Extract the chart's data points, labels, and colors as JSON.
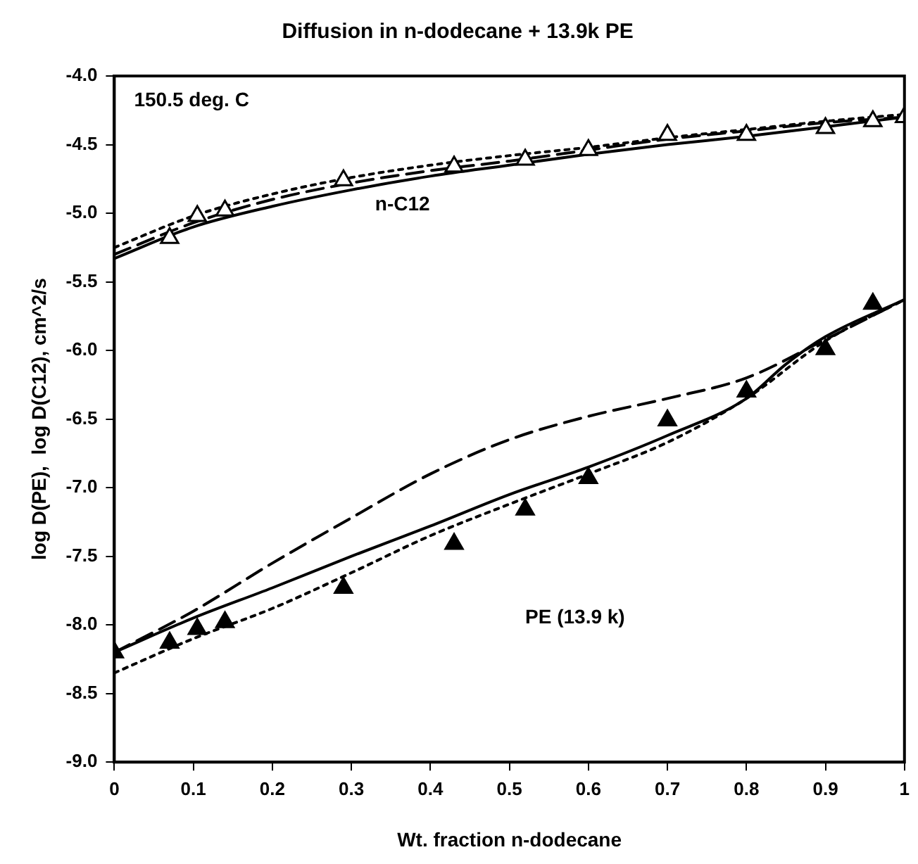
{
  "chart_data": {
    "type": "line",
    "title": "Diffusion in n-dodecane + 13.9k PE",
    "xlabel": "Wt. fraction n-dodecane",
    "ylabel": "log D(PE),  log D(C12), cm^2/s",
    "xlim": [
      0,
      1
    ],
    "xticks": [
      0,
      0.1,
      0.2,
      0.3,
      0.4,
      0.5,
      0.6,
      0.7,
      0.8,
      0.9,
      1
    ],
    "ylim": [
      -9,
      -4
    ],
    "yticks": [
      {
        "value": -9,
        "label": "-9.0"
      },
      {
        "value": -8.5,
        "label": "-8.5"
      },
      {
        "value": -8,
        "label": "-8.0"
      },
      {
        "value": -7.5,
        "label": "-7.5"
      },
      {
        "value": -7,
        "label": "-7.0"
      },
      {
        "value": -6.5,
        "label": "-6.5"
      },
      {
        "value": -6,
        "label": "-6.0"
      },
      {
        "value": -5.5,
        "label": "-5.5"
      },
      {
        "value": -5,
        "label": "-5.0"
      },
      {
        "value": -4.5,
        "label": "-4.5"
      },
      {
        "value": -4,
        "label": "-4.0"
      }
    ],
    "grid": false,
    "legend": false,
    "annotations": [
      "150.5 deg. C",
      "n-C12",
      "PE (13.9 k)"
    ],
    "series": [
      {
        "type": "line",
        "line_style": "solid",
        "marker": "none",
        "color": "#000000",
        "x": [
          0,
          0.1,
          0.2,
          0.3,
          0.4,
          0.5,
          0.6,
          0.7,
          0.8,
          0.9,
          1
        ],
        "values": [
          -5.33,
          -5.1,
          -4.95,
          -4.83,
          -4.73,
          -4.65,
          -4.57,
          -4.5,
          -4.44,
          -4.37,
          -4.3
        ]
      },
      {
        "type": "line",
        "line_style": "dashed",
        "marker": "none",
        "color": "#000000",
        "x": [
          0,
          0.1,
          0.2,
          0.3,
          0.4,
          0.5,
          0.6,
          0.7,
          0.8,
          0.9,
          1
        ],
        "values": [
          -5.3,
          -5.07,
          -4.9,
          -4.78,
          -4.69,
          -4.62,
          -4.54,
          -4.46,
          -4.4,
          -4.34,
          -4.3
        ]
      },
      {
        "type": "line",
        "line_style": "dotted",
        "marker": "none",
        "color": "#000000",
        "x": [
          0,
          0.1,
          0.2,
          0.3,
          0.4,
          0.5,
          0.6,
          0.7,
          0.8,
          0.9,
          1
        ],
        "values": [
          -5.25,
          -5.02,
          -4.86,
          -4.74,
          -4.65,
          -4.58,
          -4.52,
          -4.45,
          -4.39,
          -4.33,
          -4.28
        ]
      },
      {
        "type": "line",
        "line_style": "solid",
        "marker": "none",
        "color": "#000000",
        "x": [
          0,
          0.1,
          0.2,
          0.3,
          0.4,
          0.5,
          0.6,
          0.7,
          0.8,
          0.85,
          0.9,
          1
        ],
        "values": [
          -8.2,
          -7.95,
          -7.73,
          -7.5,
          -7.28,
          -7.05,
          -6.85,
          -6.62,
          -6.35,
          -6.1,
          -5.9,
          -5.63
        ]
      },
      {
        "type": "line",
        "line_style": "dashed",
        "marker": "none",
        "color": "#000000",
        "x": [
          0,
          0.1,
          0.2,
          0.3,
          0.4,
          0.5,
          0.6,
          0.7,
          0.8,
          0.9,
          1
        ],
        "values": [
          -8.2,
          -7.9,
          -7.55,
          -7.22,
          -6.9,
          -6.65,
          -6.48,
          -6.35,
          -6.2,
          -5.92,
          -5.63
        ]
      },
      {
        "type": "line",
        "line_style": "dotted",
        "marker": "none",
        "color": "#000000",
        "x": [
          0,
          0.1,
          0.2,
          0.3,
          0.4,
          0.5,
          0.6,
          0.7,
          0.8,
          0.9,
          1
        ],
        "values": [
          -8.35,
          -8.1,
          -7.88,
          -7.62,
          -7.35,
          -7.12,
          -6.9,
          -6.67,
          -6.35,
          -5.93,
          -5.63
        ]
      },
      {
        "type": "scatter",
        "marker": "triangle",
        "color": "#ffffff",
        "x": [
          0.07,
          0.105,
          0.14,
          0.29,
          0.43,
          0.52,
          0.6,
          0.7,
          0.8,
          0.9,
          0.96,
          1
        ],
        "values": [
          -5.18,
          -5.02,
          -4.98,
          -4.76,
          -4.66,
          -4.61,
          -4.54,
          -4.43,
          -4.43,
          -4.38,
          -4.33,
          -4.3
        ]
      },
      {
        "type": "scatter",
        "marker": "triangle",
        "color": "#000000",
        "x": [
          0,
          0.07,
          0.105,
          0.14,
          0.29,
          0.43,
          0.52,
          0.6,
          0.7,
          0.8,
          0.9,
          0.96
        ],
        "values": [
          -8.2,
          -8.13,
          -8.03,
          -7.98,
          -7.73,
          -7.41,
          -7.16,
          -6.93,
          -6.51,
          -6.3,
          -5.99,
          -5.66
        ]
      }
    ]
  }
}
